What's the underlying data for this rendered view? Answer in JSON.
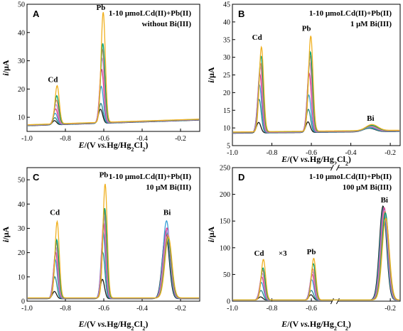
{
  "series_colors": [
    "#1a1a1a",
    "#2a8a8a",
    "#3aa0d8",
    "#e03a8a",
    "#c090e0",
    "#f08060",
    "#00a070",
    "#f0b020"
  ],
  "chart_data": [
    {
      "panel": "A",
      "type": "line",
      "title_lines": [
        "1-10 μmoLCd(II)+Pb(II)",
        "without Bi(III)"
      ],
      "xlabel": "E/(V vs.Hg/Hg2Cl2)",
      "ylabel": "i/μA",
      "xlim": [
        -1.0,
        -0.1
      ],
      "ylim": [
        5,
        50
      ],
      "x_ticks": [
        "-1.0",
        "-0.8",
        "-0.6",
        "-0.4",
        "-0.2"
      ],
      "y_ticks": [
        "10",
        "20",
        "30",
        "40",
        "50"
      ],
      "baseline": {
        "start": 7.0,
        "end": 9.0
      },
      "peaks": [
        {
          "label": "Cd",
          "x": -0.85,
          "heights": [
            8.5,
            9.5,
            11,
            12.5,
            14,
            15.5,
            17,
            20.5
          ]
        },
        {
          "label": "Pb",
          "x": -0.61,
          "heights": [
            12,
            14,
            20,
            26,
            30,
            33,
            35,
            46
          ]
        }
      ],
      "labels": [
        {
          "text": "Cd",
          "x": -0.865,
          "y": 22.5
        },
        {
          "text": "Pb",
          "x": -0.615,
          "y": 48
        }
      ],
      "break": null,
      "multiplier": null
    },
    {
      "panel": "B",
      "type": "line",
      "title_lines": [
        "1-10 μmoLCd(II)+Pb(II)",
        "1 μM Bi(III)"
      ],
      "xlabel": "E/(V vs.Hg/Hg2Cl2)",
      "ylabel": "i/μA",
      "xlim": [
        -1.0,
        -0.15
      ],
      "ylim": [
        5,
        45
      ],
      "x_ticks": [
        "-1.0",
        "-0.8",
        "-0.6",
        "-0.4",
        "-0.2"
      ],
      "y_ticks": [
        "5",
        "10",
        "15",
        "20",
        "25",
        "30",
        "35",
        "40",
        "45"
      ],
      "baseline": {
        "start": 8.5,
        "end": 9.0
      },
      "peaks": [
        {
          "label": "Cd",
          "x": -0.86,
          "heights": [
            11.5,
            18,
            22,
            25,
            27,
            28,
            30,
            32.5
          ]
        },
        {
          "label": "Pb",
          "x": -0.61,
          "heights": [
            11.5,
            15,
            19,
            25,
            28,
            30,
            31,
            35.5
          ]
        },
        {
          "label": "Bi",
          "x": -0.3,
          "heights": [
            9.5,
            9.5,
            9.7,
            9.8,
            9.8,
            9.9,
            10.0,
            10.2
          ]
        }
      ],
      "labels": [
        {
          "text": "Cd",
          "x": -0.875,
          "y": 35
        },
        {
          "text": "Pb",
          "x": -0.625,
          "y": 37.5
        },
        {
          "text": "Bi",
          "x": -0.3,
          "y": 12
        }
      ],
      "break": null,
      "multiplier": null
    },
    {
      "panel": "C",
      "type": "line",
      "title_lines": [
        "1-10 μmoLCd(II)+Pb(II)",
        "10 μM Bi(III)"
      ],
      "xlabel": "E/(V vs.Hg/Hg2Cl2)",
      "ylabel": "i/μA",
      "xlim": [
        -1.0,
        -0.1
      ],
      "ylim": [
        0,
        55
      ],
      "x_ticks": [
        "-1.0",
        "-0.8",
        "-0.6",
        "-0.4",
        "-0.2"
      ],
      "y_ticks": [
        "0",
        "10",
        "20",
        "30",
        "40",
        "50"
      ],
      "baseline": {
        "start": 1.0,
        "end": 1.0
      },
      "peaks": [
        {
          "label": "Cd",
          "x": -0.85,
          "heights": [
            4,
            10,
            17,
            20,
            22,
            24,
            25,
            32.5
          ]
        },
        {
          "label": "Pb",
          "x": -0.6,
          "heights": [
            9,
            20,
            28,
            32,
            35,
            37,
            38,
            48
          ]
        },
        {
          "label": "Bi",
          "x": -0.27,
          "heights": [
            28,
            29,
            33,
            30,
            29,
            27,
            26,
            26
          ]
        }
      ],
      "labels": [
        {
          "text": "Cd",
          "x": -0.855,
          "y": 35.5
        },
        {
          "text": "Pb",
          "x": -0.6,
          "y": 51
        },
        {
          "text": "Bi",
          "x": -0.27,
          "y": 35.5
        }
      ],
      "break": null,
      "multiplier": null
    },
    {
      "panel": "D",
      "type": "line",
      "title_lines": [
        "1-10 μmoLCd(II)+Pb(II)",
        "100 μM Bi(III)"
      ],
      "xlabel": "E/(V vs.Hg/Hg2Cl2)",
      "ylabel": "i/μA",
      "xlim": [
        -1.0,
        -0.15
      ],
      "ylim": [
        0,
        250
      ],
      "x_ticks": [
        "-1.0",
        "-0.8",
        "-0.6",
        "-0.2"
      ],
      "y_ticks": [
        "0",
        "50",
        "100",
        "150",
        "200",
        "250"
      ],
      "baseline": {
        "start": 2.0,
        "end": 2.0
      },
      "peaks": [
        {
          "label": "Cd",
          "x": -0.85,
          "heights": [
            8,
            20,
            35,
            45,
            52,
            58,
            62,
            78
          ]
        },
        {
          "label": "Pb",
          "x": -0.595,
          "heights": [
            12,
            20,
            40,
            50,
            55,
            60,
            70,
            80
          ]
        },
        {
          "label": "Bi",
          "x": -0.23,
          "heights": [
            178,
            175,
            172,
            175,
            170,
            168,
            165,
            155
          ]
        }
      ],
      "labels": [
        {
          "text": "Cd",
          "x": -0.865,
          "y": 85
        },
        {
          "text": "×3",
          "x": -0.745,
          "y": 85
        },
        {
          "text": "Pb",
          "x": -0.6,
          "y": 88
        },
        {
          "text": "Bi",
          "x": -0.23,
          "y": 185
        }
      ],
      "break": {
        "x": -0.48
      },
      "multiplier": "×3"
    }
  ]
}
